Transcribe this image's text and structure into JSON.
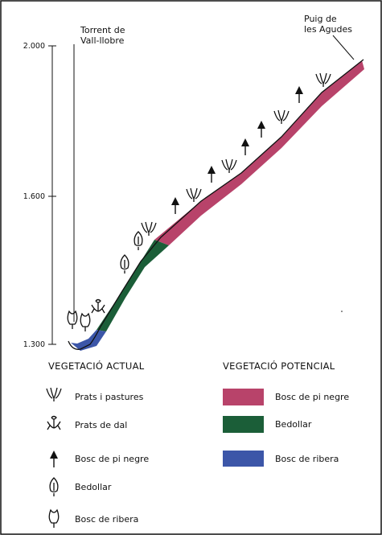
{
  "axis": {
    "ticks": [
      "2.000",
      "1.600",
      "1.300"
    ]
  },
  "places": [
    {
      "lines": [
        "Torrent de",
        "Vall-llobre"
      ]
    },
    {
      "lines": [
        "Puig de",
        "les Agudes"
      ]
    }
  ],
  "legend_actual": {
    "title": "VEGETACIÓ ACTUAL",
    "items": [
      "Prats i pastures",
      "Prats de dal",
      "Bosc de pi negre",
      "Bedollar",
      "Bosc de ribera"
    ]
  },
  "legend_potencial": {
    "title": "VEGETACIÓ POTENCIAL",
    "items": [
      "Bosc de pi negre",
      "Bedollar",
      "Bosc de ribera"
    ]
  }
}
